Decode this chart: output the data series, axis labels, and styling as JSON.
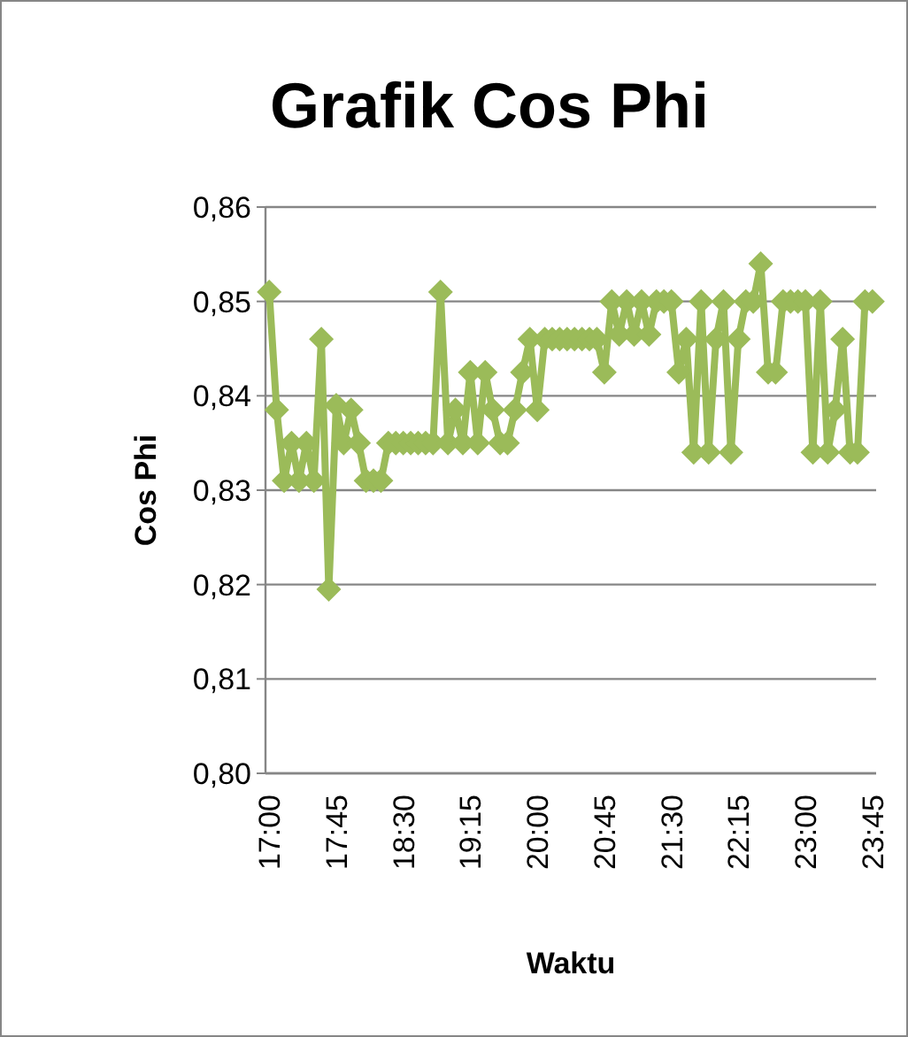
{
  "chart_data": {
    "type": "line",
    "title": "Grafik Cos Phi",
    "xlabel": "Waktu",
    "ylabel": "Cos Phi",
    "categories": [
      "17:00",
      null,
      null,
      null,
      null,
      null,
      null,
      null,
      null,
      "17:45",
      null,
      null,
      null,
      null,
      null,
      null,
      null,
      null,
      "18:30",
      null,
      null,
      null,
      null,
      null,
      null,
      null,
      null,
      "19:15",
      null,
      null,
      null,
      null,
      null,
      null,
      null,
      null,
      "20:00",
      null,
      null,
      null,
      null,
      null,
      null,
      null,
      null,
      "20:45",
      null,
      null,
      null,
      null,
      null,
      null,
      null,
      null,
      "21:30",
      null,
      null,
      null,
      null,
      null,
      null,
      null,
      null,
      "22:15",
      null,
      null,
      null,
      null,
      null,
      null,
      null,
      null,
      "23:00",
      null,
      null,
      null,
      null,
      null,
      null,
      null,
      null,
      "23:45"
    ],
    "series": [
      {
        "color": "#9bbb59",
        "values": [
          0.851,
          0.8385,
          0.831,
          0.835,
          0.831,
          0.835,
          0.831,
          0.846,
          0.8195,
          0.839,
          0.835,
          0.8385,
          0.835,
          0.831,
          0.831,
          0.831,
          0.835,
          0.835,
          0.835,
          0.835,
          0.835,
          0.835,
          0.835,
          0.851,
          0.835,
          0.8385,
          0.835,
          0.8425,
          0.835,
          0.8425,
          0.8385,
          0.835,
          0.835,
          0.8385,
          0.8425,
          0.846,
          0.8385,
          0.846,
          0.846,
          0.846,
          0.846,
          0.846,
          0.846,
          0.846,
          0.846,
          0.8425,
          0.85,
          0.8465,
          0.85,
          0.8465,
          0.85,
          0.8465,
          0.85,
          0.85,
          0.85,
          0.8425,
          0.846,
          0.834,
          0.85,
          0.834,
          0.846,
          0.85,
          0.834,
          0.846,
          0.85,
          0.85,
          0.854,
          0.8425,
          0.8425,
          0.85,
          0.85,
          0.85,
          0.85,
          0.834,
          0.85,
          0.834,
          0.8385,
          0.846,
          0.834,
          0.834,
          0.85,
          0.85
        ]
      }
    ],
    "ylim": [
      0.8,
      0.86
    ],
    "yticks": [
      {
        "value": 0.8,
        "label": "0,80"
      },
      {
        "value": 0.81,
        "label": "0,81"
      },
      {
        "value": 0.82,
        "label": "0,82"
      },
      {
        "value": 0.83,
        "label": "0,83"
      },
      {
        "value": 0.84,
        "label": "0,84"
      },
      {
        "value": 0.85,
        "label": "0,85"
      },
      {
        "value": 0.86,
        "label": "0,86"
      }
    ],
    "grid": "y",
    "marker": "diamond",
    "line_style": "solid"
  }
}
